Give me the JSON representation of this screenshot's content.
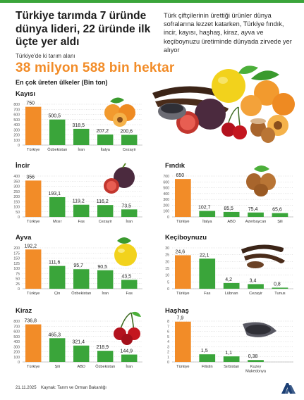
{
  "header": {
    "title": "Türkiye tarımda 7 üründe dünya lideri, 22 üründe ilk üçte yer aldı",
    "intro": "Türk çiftçilerinin ürettiği ürünler dünya sofralarına lezzet katarken, Türkiye fındık, incir, kayısı, haşhaş, kiraz, ayva ve keçiboynuzu üretiminde dünyada zirvede yer alıyor",
    "area_label": "Türkiye'de ki tarım alanı",
    "area_value": "38 milyon 588 bin hektar",
    "subtitle": "En çok üreten ülkeler (Bin ton)"
  },
  "footer": {
    "date": "21.11.2025",
    "source": "Kaynak: Tarım ve Orman Bakanlığı",
    "logo_text": "AA"
  },
  "colors": {
    "turkey": "#f28c28",
    "others": "#3aa53a",
    "title": "#1b1b1b",
    "accent": "#f28c28"
  },
  "chart_data": [
    {
      "type": "bar",
      "title": "Kayısı",
      "categories": [
        "Türkiye",
        "Özbekistan",
        "İran",
        "İtalya",
        "Cezayir"
      ],
      "values": [
        750,
        500.5,
        318.5,
        207.2,
        200.6
      ],
      "value_labels": [
        "750",
        "500,5",
        "318,5",
        "207,2",
        "200,6"
      ],
      "ylim": [
        0,
        800
      ],
      "yticks": [
        0,
        100,
        200,
        300,
        400,
        500,
        600,
        700,
        800
      ],
      "grid": true,
      "illustration": "apricot-icon"
    },
    {
      "type": "bar",
      "title": "İncir",
      "categories": [
        "Türkiye",
        "Mısır",
        "Fas",
        "Cezayir",
        "İran"
      ],
      "values": [
        356,
        193.1,
        119.2,
        116.2,
        73.5
      ],
      "value_labels": [
        "356",
        "193,1",
        "119,2",
        "116,2",
        "73,5"
      ],
      "ylim": [
        0,
        400
      ],
      "yticks": [
        0,
        50,
        100,
        150,
        200,
        250,
        300,
        350,
        400
      ],
      "grid": true,
      "illustration": "fig-icon"
    },
    {
      "type": "bar",
      "title": "Fındık",
      "categories": [
        "Türkiye",
        "İtalya",
        "ABD",
        "Azerbaycan",
        "Şili"
      ],
      "values": [
        650,
        102.7,
        85.5,
        75.4,
        65.6
      ],
      "value_labels": [
        "650",
        "102,7",
        "85,5",
        "75,4",
        "65,6"
      ],
      "ylim": [
        0,
        700
      ],
      "yticks": [
        0,
        100,
        200,
        300,
        400,
        500,
        600,
        700
      ],
      "grid": true,
      "illustration": "hazelnut-icon"
    },
    {
      "type": "bar",
      "title": "Ayva",
      "categories": [
        "Türkiye",
        "Çin",
        "Özbekistan",
        "İran",
        "Fas"
      ],
      "values": [
        192.2,
        111.6,
        95.7,
        90.5,
        43.5
      ],
      "value_labels": [
        "192,2",
        "111,6",
        "95,7",
        "90,5",
        "43,5"
      ],
      "ylim": [
        0,
        200
      ],
      "yticks": [
        0,
        25,
        50,
        75,
        100,
        125,
        150,
        175,
        200
      ],
      "grid": true,
      "illustration": "quince-icon"
    },
    {
      "type": "bar",
      "title": "Keçiboynuzu",
      "categories": [
        "Türkiye",
        "Fas",
        "Lübnan",
        "Cezayir",
        "Tunus"
      ],
      "values": [
        24.6,
        22.1,
        4.2,
        3.4,
        0.8
      ],
      "value_labels": [
        "24,6",
        "22,1",
        "4,2",
        "3,4",
        "0,8"
      ],
      "ylim": [
        0,
        30
      ],
      "yticks": [
        0,
        5,
        10,
        15,
        20,
        25,
        30
      ],
      "grid": true,
      "illustration": "carob-icon"
    },
    {
      "type": "bar",
      "title": "Kiraz",
      "categories": [
        "Türkiye",
        "Şili",
        "ABD",
        "Özbekistan",
        "İran"
      ],
      "values": [
        736.8,
        465.3,
        321.4,
        218.9,
        144.9
      ],
      "value_labels": [
        "736,8",
        "465,3",
        "321,4",
        "218,9",
        "144,9"
      ],
      "ylim": [
        0,
        800
      ],
      "yticks": [
        0,
        100,
        200,
        300,
        400,
        500,
        600,
        700,
        800
      ],
      "grid": true,
      "illustration": "cherry-icon"
    },
    {
      "type": "bar",
      "title": "Haşhaş",
      "categories": [
        "Türkiye",
        "Filistin",
        "Sırbistan",
        "Kuzey Makedonya"
      ],
      "values": [
        7.9,
        1.5,
        1.1,
        0.38
      ],
      "value_labels": [
        "7,9",
        "1,5",
        "1,1",
        "0,38"
      ],
      "ylim": [
        0,
        8
      ],
      "yticks": [
        0,
        1,
        2,
        3,
        4,
        5,
        6,
        7,
        8
      ],
      "grid": true,
      "illustration": "poppy-seed-icon"
    }
  ]
}
